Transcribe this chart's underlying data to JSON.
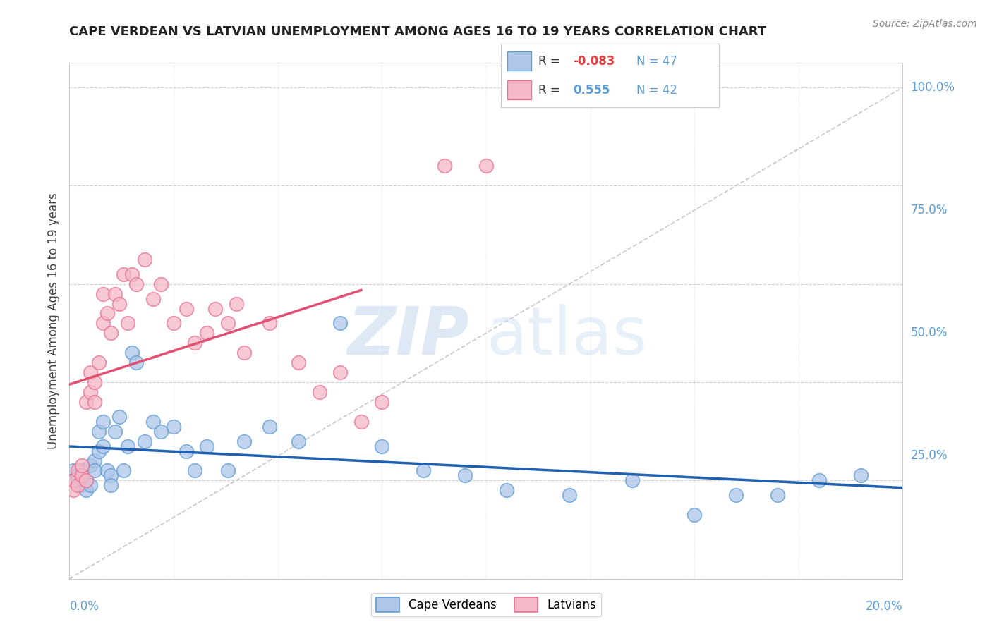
{
  "title": "CAPE VERDEAN VS LATVIAN UNEMPLOYMENT AMONG AGES 16 TO 19 YEARS CORRELATION CHART",
  "source": "Source: ZipAtlas.com",
  "ylabel": "Unemployment Among Ages 16 to 19 years",
  "xlim": [
    0.0,
    0.2
  ],
  "ylim": [
    0.0,
    1.05
  ],
  "watermark_zip": "ZIP",
  "watermark_atlas": "atlas",
  "legend_cv_R": "-0.083",
  "legend_cv_N": "47",
  "legend_lv_R": "0.555",
  "legend_lv_N": "42",
  "cv_color_fill": "#aec6e8",
  "cv_color_edge": "#5b9bd5",
  "lv_color_fill": "#f4b8c8",
  "lv_color_edge": "#e87090",
  "trend_cv_color": "#2060b0",
  "trend_lv_color": "#e05070",
  "diag_color": "#bbbbbb",
  "grid_color": "#cccccc",
  "title_color": "#222222",
  "tick_color": "#5b9bd5",
  "ylabel_color": "#444444",
  "source_color": "#888888",
  "background": "#ffffff",
  "ytick_vals": [
    0.0,
    0.25,
    0.5,
    0.75,
    1.0
  ],
  "ytick_labels": [
    "",
    "25.0%",
    "50.0%",
    "75.0%",
    "100.0%"
  ],
  "cv_x": [
    0.001,
    0.001,
    0.002,
    0.003,
    0.003,
    0.004,
    0.004,
    0.005,
    0.005,
    0.006,
    0.006,
    0.007,
    0.007,
    0.008,
    0.008,
    0.009,
    0.01,
    0.01,
    0.011,
    0.012,
    0.013,
    0.014,
    0.015,
    0.016,
    0.018,
    0.02,
    0.022,
    0.025,
    0.028,
    0.03,
    0.033,
    0.038,
    0.042,
    0.048,
    0.055,
    0.065,
    0.075,
    0.085,
    0.095,
    0.105,
    0.12,
    0.135,
    0.15,
    0.16,
    0.17,
    0.18,
    0.19
  ],
  "cv_y": [
    0.22,
    0.2,
    0.21,
    0.19,
    0.22,
    0.2,
    0.18,
    0.23,
    0.19,
    0.24,
    0.22,
    0.3,
    0.26,
    0.32,
    0.27,
    0.22,
    0.21,
    0.19,
    0.3,
    0.33,
    0.22,
    0.27,
    0.46,
    0.44,
    0.28,
    0.32,
    0.3,
    0.31,
    0.26,
    0.22,
    0.27,
    0.22,
    0.28,
    0.31,
    0.28,
    0.52,
    0.27,
    0.22,
    0.21,
    0.18,
    0.17,
    0.2,
    0.13,
    0.17,
    0.17,
    0.2,
    0.21
  ],
  "lv_x": [
    0.001,
    0.001,
    0.002,
    0.002,
    0.003,
    0.003,
    0.004,
    0.004,
    0.005,
    0.005,
    0.006,
    0.006,
    0.007,
    0.008,
    0.008,
    0.009,
    0.01,
    0.011,
    0.012,
    0.013,
    0.014,
    0.015,
    0.016,
    0.018,
    0.02,
    0.022,
    0.025,
    0.028,
    0.03,
    0.033,
    0.035,
    0.038,
    0.04,
    0.042,
    0.048,
    0.055,
    0.06,
    0.065,
    0.07,
    0.075,
    0.09,
    0.1
  ],
  "lv_y": [
    0.18,
    0.2,
    0.19,
    0.22,
    0.21,
    0.23,
    0.2,
    0.36,
    0.38,
    0.42,
    0.36,
    0.4,
    0.44,
    0.52,
    0.58,
    0.54,
    0.5,
    0.58,
    0.56,
    0.62,
    0.52,
    0.62,
    0.6,
    0.65,
    0.57,
    0.6,
    0.52,
    0.55,
    0.48,
    0.5,
    0.55,
    0.52,
    0.56,
    0.46,
    0.52,
    0.44,
    0.38,
    0.42,
    0.32,
    0.36,
    0.84,
    0.84
  ]
}
